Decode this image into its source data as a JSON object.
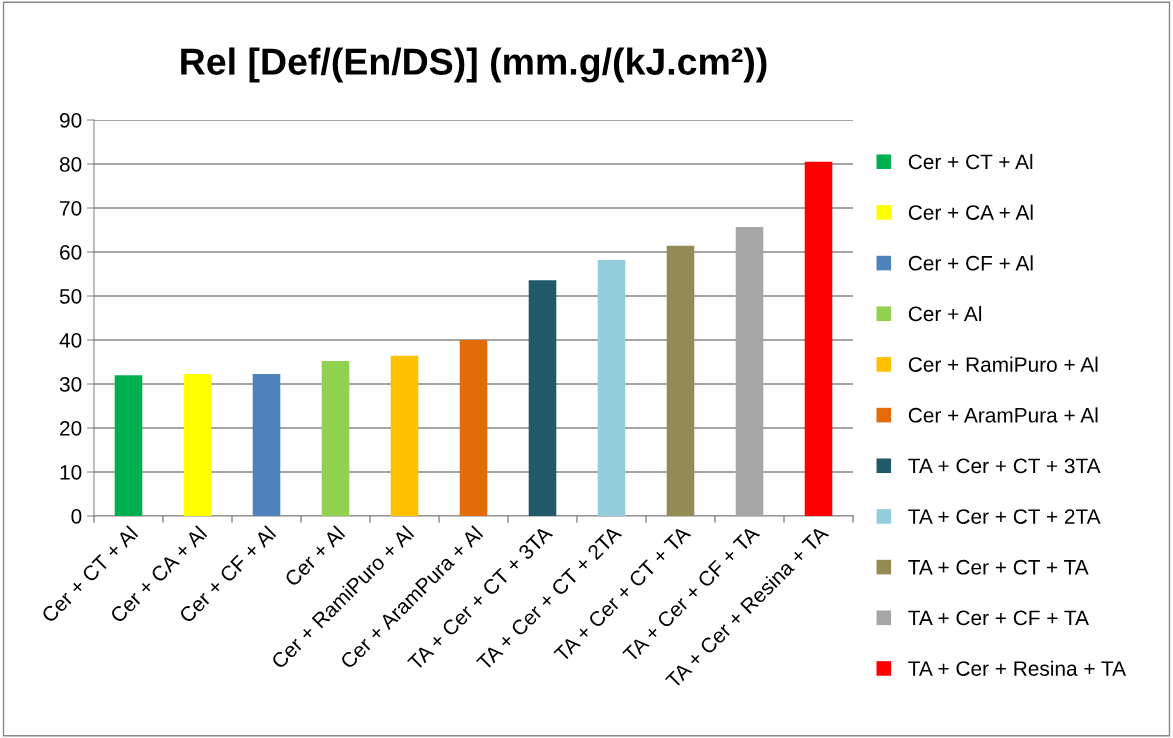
{
  "chart_data": {
    "type": "bar",
    "title": "Rel [Def/(En/DS)] (mm.g/(kJ.cm²))",
    "categories": [
      "Cer + CT + Al",
      "Cer + CA + Al",
      "Cer + CF + Al",
      "Cer + Al",
      "Cer + RamiPuro + Al",
      "Cer + AramPura + Al",
      "TA + Cer + CT + 3TA",
      "TA + Cer + CT + 2TA",
      "TA + Cer + CT + TA",
      "TA + Cer + CF + TA",
      "TA + Cer + Resina + TA"
    ],
    "series": [
      {
        "name": "Cer + CT + Al",
        "color": "#00b050",
        "values": [
          32.0,
          null,
          null,
          null,
          null,
          null,
          null,
          null,
          null,
          null,
          null
        ]
      },
      {
        "name": "Cer + CA + Al",
        "color": "#ffff00",
        "values": [
          null,
          32.3,
          null,
          null,
          null,
          null,
          null,
          null,
          null,
          null,
          null
        ]
      },
      {
        "name": "Cer + CF + Al",
        "color": "#4f81bd",
        "values": [
          null,
          null,
          32.3,
          null,
          null,
          null,
          null,
          null,
          null,
          null,
          null
        ]
      },
      {
        "name": "Cer + Al",
        "color": "#92d050",
        "values": [
          null,
          null,
          null,
          35.2,
          null,
          null,
          null,
          null,
          null,
          null,
          null
        ]
      },
      {
        "name": "Cer + RamiPuro + Al",
        "color": "#ffc000",
        "values": [
          null,
          null,
          null,
          null,
          36.4,
          null,
          null,
          null,
          null,
          null,
          null
        ]
      },
      {
        "name": "Cer + AramPura + Al",
        "color": "#e36c09",
        "values": [
          null,
          null,
          null,
          null,
          null,
          40.0,
          null,
          null,
          null,
          null,
          null
        ]
      },
      {
        "name": "TA + Cer + CT + 3TA",
        "color": "#215968",
        "values": [
          null,
          null,
          null,
          null,
          null,
          null,
          53.6,
          null,
          null,
          null,
          null
        ]
      },
      {
        "name": "TA + Cer + CT + 2TA",
        "color": "#92cddc",
        "values": [
          null,
          null,
          null,
          null,
          null,
          null,
          null,
          58.2,
          null,
          null,
          null
        ]
      },
      {
        "name": "TA + Cer + CT + TA",
        "color": "#948a54",
        "values": [
          null,
          null,
          null,
          null,
          null,
          null,
          null,
          null,
          61.4,
          null,
          null
        ]
      },
      {
        "name": "TA + Cer + CF + TA",
        "color": "#a6a6a6",
        "values": [
          null,
          null,
          null,
          null,
          null,
          null,
          null,
          null,
          null,
          65.7,
          null
        ]
      },
      {
        "name": "TA + Cer + Resina + TA",
        "color": "#ff0000",
        "values": [
          null,
          null,
          null,
          null,
          null,
          null,
          null,
          null,
          null,
          null,
          80.5
        ]
      }
    ],
    "ylim": [
      0,
      90
    ],
    "yticks": [
      0,
      10,
      20,
      30,
      40,
      50,
      60,
      70,
      80,
      90
    ],
    "grid": "y",
    "legend": "right"
  }
}
